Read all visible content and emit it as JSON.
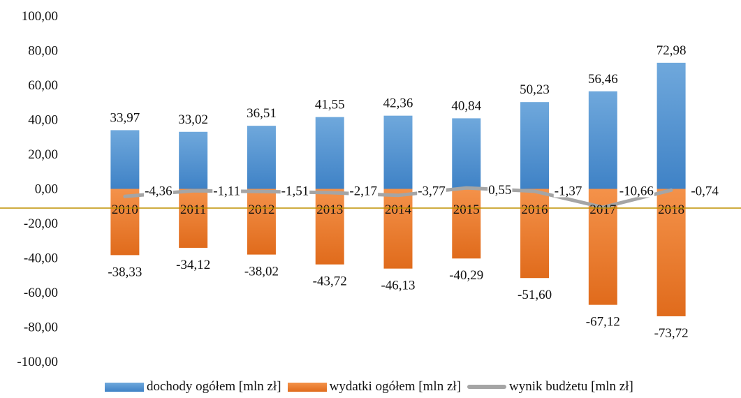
{
  "chart_data": {
    "type": "bar",
    "categories": [
      "2010",
      "2011",
      "2012",
      "2013",
      "2014",
      "2015",
      "2016",
      "2017",
      "2018"
    ],
    "series": [
      {
        "name": "dochody ogółem [mln zł]",
        "kind": "bar",
        "values": [
          33.97,
          33.02,
          36.51,
          41.55,
          42.36,
          40.84,
          50.23,
          56.46,
          72.98
        ],
        "labels": [
          "33,97",
          "33,02",
          "36,51",
          "41,55",
          "42,36",
          "40,84",
          "50,23",
          "56,46",
          "72,98"
        ],
        "color": "#5B9BD5"
      },
      {
        "name": "wydatki ogółem [mln zł]",
        "kind": "bar",
        "values": [
          -38.33,
          -34.12,
          -38.02,
          -43.72,
          -46.13,
          -40.29,
          -51.6,
          -67.12,
          -73.72
        ],
        "labels": [
          "-38,33",
          "-34,12",
          "-38,02",
          "-43,72",
          "-46,13",
          "-40,29",
          "-51,60",
          "-67,12",
          "-73,72"
        ],
        "color": "#ED7D31"
      },
      {
        "name": "wynik budżetu [mln zł]",
        "kind": "line",
        "values": [
          -4.36,
          -1.11,
          -1.51,
          -2.17,
          -3.77,
          0.55,
          -1.37,
          -10.66,
          -0.74
        ],
        "labels": [
          "-4,36",
          "-1,11",
          "-1,51",
          "-2,17",
          "-3,77",
          "0,55",
          "-1,37",
          "-10,66",
          "-0,74"
        ],
        "color": "#A5A5A5"
      }
    ],
    "yticks": [
      "100,00",
      "80,00",
      "60,00",
      "40,00",
      "20,00",
      "0,00",
      "-20,00",
      "-40,00",
      "-60,00",
      "-80,00",
      "-100,00"
    ],
    "ylim": [
      -100,
      100
    ],
    "xlabel": "",
    "ylabel": "",
    "title": "",
    "legend_position": "bottom",
    "reference_line_color": "#BF9000",
    "grid": false
  }
}
